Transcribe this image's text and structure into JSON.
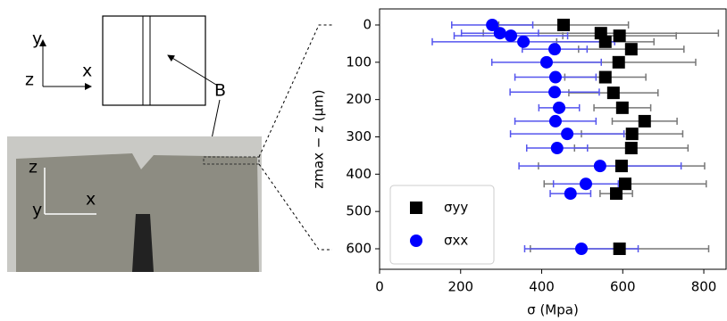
{
  "diagram": {
    "labels": [
      "y",
      "z",
      "x",
      "B",
      "z",
      "y",
      "x"
    ]
  },
  "chart_data": {
    "type": "scatter",
    "xlabel": "σ (Mpa)",
    "ylabel": "zmax − z (μm)",
    "xlim": [
      0,
      855
    ],
    "ylim": [
      655,
      -43
    ],
    "xticks": [
      0,
      200,
      400,
      600,
      800
    ],
    "yticks": [
      0,
      100,
      200,
      300,
      400,
      500,
      600
    ],
    "legend": "lower left",
    "series": [
      {
        "name": "σyy",
        "color": "#000000",
        "error_color": "#777777",
        "marker": "square",
        "x": [
          454,
          546,
          592,
          557,
          621,
          590,
          557,
          577,
          599,
          654,
          623,
          621,
          597,
          606,
          584,
          592
        ],
        "xerr": [
          160,
          290,
          140,
          120,
          130,
          190,
          100,
          110,
          70,
          80,
          125,
          140,
          205,
          200,
          40,
          220
        ],
        "values": [
          0,
          22,
          29,
          45,
          65,
          100,
          140,
          182,
          222,
          258,
          292,
          330,
          378,
          426,
          452,
          600
        ]
      },
      {
        "name": "σxx",
        "color": "#0000ff",
        "error_color": "#5555ee",
        "marker": "circle",
        "x": [
          278,
          297,
          324,
          355,
          432,
          412,
          434,
          432,
          443,
          434,
          463,
          438,
          544,
          509,
          471,
          498
        ],
        "xerr": [
          100,
          95,
          140,
          225,
          80,
          135,
          100,
          110,
          50,
          100,
          140,
          75,
          200,
          80,
          50,
          140
        ],
        "values": [
          0,
          22,
          29,
          45,
          65,
          100,
          140,
          180,
          222,
          258,
          292,
          330,
          378,
          426,
          452,
          600
        ]
      }
    ]
  }
}
